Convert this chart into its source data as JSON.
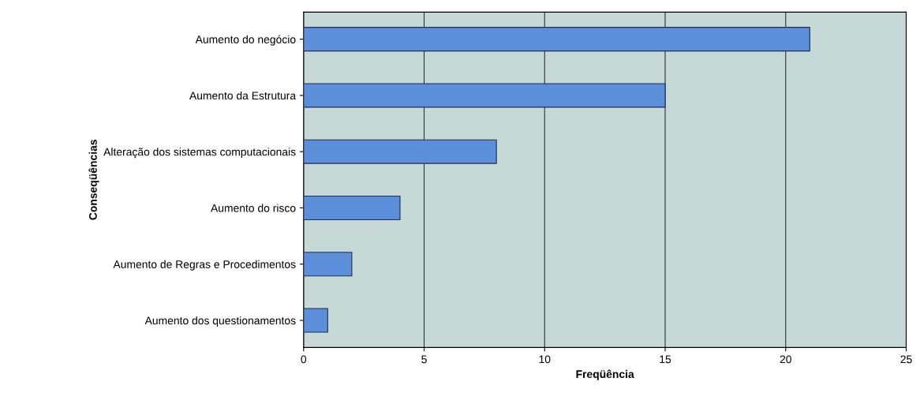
{
  "chart_data": {
    "type": "bar",
    "orientation": "horizontal",
    "xlabel": "Freqüência",
    "ylabel": "Conseqüências",
    "categories": [
      "Aumento do negócio",
      "Aumento da Estrutura",
      "Alteração dos sistemas computacionais",
      "Aumento do risco",
      "Aumento de Regras e Procedimentos",
      "Aumento dos questionamentos"
    ],
    "values": [
      21,
      15,
      8,
      4,
      2,
      1
    ],
    "color": "#5b8fd9",
    "xlim": [
      0,
      25
    ],
    "xticks": [
      0,
      5,
      10,
      15,
      20,
      25
    ],
    "grid": "x"
  }
}
